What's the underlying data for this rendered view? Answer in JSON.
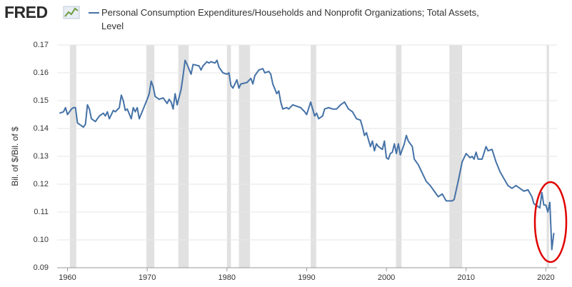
{
  "logo": "FRED",
  "chart_data": {
    "type": "line",
    "series": [
      {
        "name": "Personal Consumption Expenditures/Households and Nonprofit Organizations; Total Assets, Level",
        "color": "#4572a7",
        "values": [
          0.1455,
          0.146,
          0.1475,
          0.145,
          0.147,
          0.1475,
          0.1475,
          0.142,
          0.1415,
          0.1405,
          0.1415,
          0.1485,
          0.147,
          0.1435,
          0.1425,
          0.1445,
          0.1455,
          0.1445,
          0.146,
          0.1435,
          0.1465,
          0.146,
          0.1475,
          0.152,
          0.15,
          0.1465,
          0.147,
          0.1435,
          0.1475,
          0.146,
          0.1475,
          0.1435,
          0.147,
          0.1505,
          0.1525,
          0.157,
          0.155,
          0.1515,
          0.1505,
          0.151,
          0.149,
          0.1505,
          0.1495,
          0.147,
          0.1525,
          0.1485,
          0.154,
          0.159,
          0.1645,
          0.163,
          0.1595,
          0.163,
          0.1625,
          0.161,
          0.1625,
          0.164,
          0.1635,
          0.164,
          0.1635,
          0.1645,
          0.162,
          0.16,
          0.1595,
          0.16,
          0.1555,
          0.1545,
          0.156,
          0.1575,
          0.1545,
          0.156,
          0.1565,
          0.158,
          0.156,
          0.159,
          0.161,
          0.1615,
          0.16,
          0.1605,
          0.1595,
          0.156,
          0.1525,
          0.1535,
          0.1495,
          0.147,
          0.1475,
          0.147,
          0.1485,
          0.148,
          0.1475,
          0.146,
          0.145,
          0.1495,
          0.1445,
          0.1455,
          0.1435,
          0.1445,
          0.147,
          0.1475,
          0.147,
          0.147,
          0.1485,
          0.1495,
          0.147,
          0.146,
          0.1435,
          0.143,
          0.1405,
          0.1375,
          0.1385,
          0.1335,
          0.1355,
          0.132,
          0.1345,
          0.1335,
          0.1325,
          0.1355,
          0.1295,
          0.129,
          0.131,
          0.1315,
          0.1345,
          0.131,
          0.1345,
          0.1305,
          0.1345,
          0.1375,
          0.1355,
          0.1335,
          0.129,
          0.127,
          0.124,
          0.121,
          0.1195,
          0.1175,
          0.1155,
          0.1165,
          0.114,
          0.114,
          0.1145,
          0.121,
          0.128,
          0.131,
          0.1295,
          0.13,
          0.129,
          0.1315,
          0.129,
          0.129,
          0.1335,
          0.132,
          0.1325,
          0.128,
          0.1245,
          0.122,
          0.1195,
          0.1185,
          0.1195,
          0.1185,
          0.1175,
          0.118,
          0.1155,
          0.113,
          0.1125,
          0.1115,
          0.117,
          0.1125,
          0.1125,
          0.11,
          0.1135,
          0.0965,
          0.1025
        ]
      }
    ],
    "x": [
      1959,
      1959.5,
      1959.75,
      1960,
      1960.5,
      1960.75,
      1961,
      1961.25,
      1961.5,
      1962,
      1962.25,
      1962.5,
      1962.75,
      1963,
      1963.5,
      1964,
      1964.5,
      1964.75,
      1965,
      1965.25,
      1965.75,
      1966,
      1966.5,
      1966.75,
      1967,
      1967.25,
      1967.5,
      1968,
      1968.25,
      1968.5,
      1968.75,
      1969,
      1969.5,
      1970,
      1970.25,
      1970.5,
      1970.75,
      1971,
      1971.5,
      1972,
      1972.5,
      1972.75,
      1973,
      1973.25,
      1973.5,
      1973.75,
      1974.25,
      1974.5,
      1974.75,
      1975,
      1975.5,
      1975.75,
      1976.5,
      1976.75,
      1977,
      1977.5,
      1977.75,
      1978,
      1978.5,
      1978.75,
      1979,
      1979.5,
      1980,
      1980.25,
      1980.5,
      1980.75,
      1981,
      1981.25,
      1981.5,
      1981.75,
      1982.5,
      1983,
      1983.25,
      1983.5,
      1984,
      1984.5,
      1984.75,
      1985.25,
      1985.5,
      1985.75,
      1986.25,
      1986.5,
      1986.75,
      1987,
      1987.5,
      1987.75,
      1988.25,
      1988.75,
      1989.25,
      1989.75,
      1990,
      1990.5,
      1991,
      1991.25,
      1991.5,
      1992,
      1992.25,
      1992.75,
      1993.25,
      1993.75,
      1994.25,
      1994.75,
      1995.25,
      1995.75,
      1996.25,
      1996.75,
      1997,
      1997.25,
      1997.5,
      1998,
      1998.25,
      1998.5,
      1998.75,
      1999,
      1999.5,
      1999.75,
      2000,
      2000.25,
      2000.5,
      2000.75,
      2001,
      2001.25,
      2001.5,
      2001.75,
      2002.25,
      2002.5,
      2002.75,
      2003.25,
      2003.5,
      2004,
      2004.5,
      2005,
      2005.5,
      2006,
      2006.5,
      2007,
      2007.5,
      2008.25,
      2008.5,
      2009,
      2009.5,
      2010,
      2010.5,
      2010.75,
      2011,
      2011.25,
      2011.5,
      2012,
      2012.5,
      2012.75,
      2013.25,
      2013.75,
      2014.25,
      2014.75,
      2015.25,
      2015.75,
      2016.25,
      2016.75,
      2017.25,
      2017.75,
      2018.25,
      2018.5,
      2018.75,
      2019.25,
      2019.5,
      2019.75,
      2020,
      2020.25,
      2020.5,
      2020.75,
      2021
    ],
    "xlim": [
      1958.7,
      2021.4
    ],
    "xticks": [
      1960,
      1970,
      1980,
      1990,
      2000,
      2010,
      2020
    ],
    "ylim": [
      0.09,
      0.17
    ],
    "yticks": [
      0.09,
      {
        "value": 0.1,
        "label": "0.10"
      },
      0.11,
      0.12,
      0.13,
      0.14,
      0.15,
      0.16,
      0.17
    ],
    "ylabel": "Bil. of $/Bil. of $",
    "grid": true,
    "recessions": [
      {
        "start": 1960.3,
        "end": 1961.1
      },
      {
        "start": 1969.9,
        "end": 1970.9
      },
      {
        "start": 1973.9,
        "end": 1975.2
      },
      {
        "start": 1980.0,
        "end": 1980.5
      },
      {
        "start": 1981.5,
        "end": 1982.9
      },
      {
        "start": 1990.5,
        "end": 1991.2
      },
      {
        "start": 2001.2,
        "end": 2001.9
      },
      {
        "start": 2007.9,
        "end": 2009.5
      },
      {
        "start": 2020.1,
        "end": 2020.4
      }
    ],
    "recession_color": "#e1e1e1"
  }
}
